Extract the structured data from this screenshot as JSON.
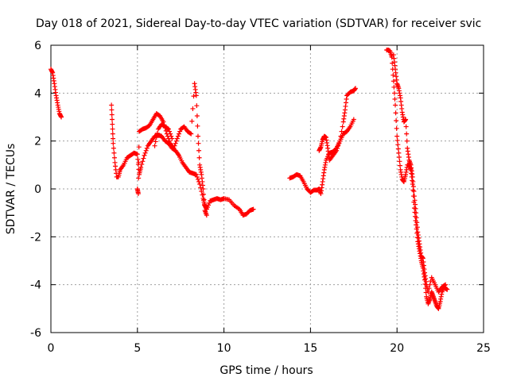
{
  "chart_data": {
    "type": "scatter",
    "title": "Day 018 of 2021, Sidereal Day-to-day VTEC variation (SDTVAR) for receiver svic",
    "xlabel": "GPS time / hours",
    "ylabel": "SDTVAR / TECUs",
    "xlim": [
      0,
      25
    ],
    "ylim": [
      -6,
      6
    ],
    "xticks": [
      0,
      5,
      10,
      15,
      20,
      25
    ],
    "yticks": [
      -6,
      -4,
      -2,
      0,
      2,
      4,
      6
    ],
    "grid": true,
    "marker": "+",
    "color": "#ff0000",
    "segments": [
      {
        "name": "seg1",
        "points": [
          [
            0.0,
            5.0
          ],
          [
            0.1,
            4.85
          ],
          [
            0.2,
            4.4
          ],
          [
            0.3,
            3.9
          ],
          [
            0.4,
            3.5
          ],
          [
            0.5,
            3.15
          ],
          [
            0.6,
            3.0
          ]
        ]
      },
      {
        "name": "seg2",
        "points": [
          [
            3.5,
            3.5
          ],
          [
            3.55,
            2.7
          ],
          [
            3.6,
            1.9
          ],
          [
            3.7,
            1.1
          ],
          [
            3.8,
            0.5
          ],
          [
            3.9,
            0.5
          ],
          [
            4.0,
            0.8
          ],
          [
            4.2,
            1.0
          ],
          [
            4.4,
            1.3
          ],
          [
            4.6,
            1.4
          ],
          [
            4.8,
            1.5
          ],
          [
            5.0,
            1.45
          ],
          [
            5.1,
            0.6
          ],
          [
            5.2,
            0.9
          ],
          [
            5.4,
            1.4
          ],
          [
            5.6,
            1.8
          ],
          [
            5.8,
            2.0
          ],
          [
            6.0,
            2.2
          ],
          [
            6.2,
            2.25
          ],
          [
            6.4,
            2.2
          ],
          [
            6.6,
            2.0
          ],
          [
            6.8,
            1.9
          ],
          [
            7.0,
            1.7
          ],
          [
            7.2,
            1.6
          ],
          [
            7.4,
            1.4
          ],
          [
            7.6,
            1.1
          ],
          [
            7.8,
            0.9
          ],
          [
            8.0,
            0.7
          ],
          [
            8.2,
            0.65
          ],
          [
            8.4,
            0.6
          ],
          [
            8.6,
            0.2
          ],
          [
            8.8,
            -0.4
          ],
          [
            8.9,
            -0.7
          ],
          [
            9.0,
            -0.85
          ],
          [
            9.2,
            -0.5
          ],
          [
            9.4,
            -0.45
          ],
          [
            9.6,
            -0.4
          ],
          [
            9.8,
            -0.45
          ],
          [
            10.0,
            -0.4
          ],
          [
            10.3,
            -0.45
          ],
          [
            10.6,
            -0.7
          ],
          [
            10.9,
            -0.85
          ],
          [
            11.1,
            -1.1
          ],
          [
            11.3,
            -1.05
          ],
          [
            11.5,
            -0.9
          ],
          [
            11.7,
            -0.85
          ]
        ]
      },
      {
        "name": "seg3",
        "points": [
          [
            5.0,
            0.0
          ],
          [
            5.05,
            -0.2
          ],
          [
            5.1,
            2.4
          ],
          [
            5.3,
            2.5
          ],
          [
            5.5,
            2.55
          ],
          [
            5.7,
            2.65
          ],
          [
            5.9,
            2.9
          ],
          [
            6.1,
            3.15
          ],
          [
            6.3,
            3.05
          ],
          [
            6.5,
            2.8
          ],
          [
            6.7,
            2.3
          ],
          [
            6.9,
            1.9
          ],
          [
            7.1,
            1.7
          ],
          [
            7.3,
            2.1
          ],
          [
            7.5,
            2.5
          ],
          [
            7.7,
            2.6
          ],
          [
            7.9,
            2.4
          ],
          [
            8.1,
            2.3
          ],
          [
            8.3,
            4.4
          ],
          [
            8.4,
            3.9
          ],
          [
            8.5,
            2.2
          ],
          [
            8.6,
            1.0
          ],
          [
            8.7,
            0.6
          ],
          [
            8.8,
            0.0
          ],
          [
            8.9,
            -0.9
          ],
          [
            9.0,
            -1.1
          ]
        ]
      },
      {
        "name": "seg4",
        "points": [
          [
            6.0,
            1.8
          ],
          [
            6.2,
            2.5
          ],
          [
            6.4,
            2.7
          ],
          [
            6.6,
            2.6
          ],
          [
            6.8,
            2.5
          ],
          [
            7.0,
            2.1
          ]
        ]
      },
      {
        "name": "seg5",
        "points": [
          [
            13.8,
            0.45
          ],
          [
            14.0,
            0.5
          ],
          [
            14.2,
            0.6
          ],
          [
            14.4,
            0.55
          ],
          [
            14.6,
            0.3
          ],
          [
            14.8,
            0.0
          ],
          [
            15.0,
            -0.15
          ],
          [
            15.2,
            -0.05
          ],
          [
            15.4,
            -0.05
          ],
          [
            15.5,
            0.0
          ],
          [
            15.6,
            -0.2
          ],
          [
            15.7,
            0.3
          ],
          [
            15.8,
            0.8
          ],
          [
            15.9,
            1.2
          ],
          [
            16.1,
            1.5
          ],
          [
            16.3,
            1.55
          ],
          [
            16.5,
            1.7
          ],
          [
            16.7,
            2.0
          ],
          [
            16.9,
            2.3
          ],
          [
            17.1,
            2.4
          ],
          [
            17.3,
            2.6
          ],
          [
            17.5,
            2.9
          ]
        ]
      },
      {
        "name": "seg6",
        "points": [
          [
            15.5,
            1.6
          ],
          [
            15.6,
            1.75
          ],
          [
            15.7,
            2.05
          ],
          [
            15.8,
            2.2
          ],
          [
            15.9,
            2.15
          ],
          [
            16.0,
            1.7
          ],
          [
            16.1,
            1.2
          ],
          [
            16.3,
            1.4
          ],
          [
            16.5,
            1.6
          ],
          [
            16.7,
            2.0
          ],
          [
            16.9,
            2.8
          ],
          [
            17.0,
            3.3
          ],
          [
            17.1,
            3.9
          ],
          [
            17.3,
            4.05
          ],
          [
            17.5,
            4.1
          ],
          [
            17.6,
            4.2
          ]
        ]
      },
      {
        "name": "seg7",
        "points": [
          [
            19.4,
            5.8
          ],
          [
            19.5,
            5.8
          ],
          [
            19.6,
            5.75
          ],
          [
            19.7,
            5.5
          ],
          [
            19.8,
            4.5
          ],
          [
            19.9,
            3.5
          ],
          [
            20.0,
            2.2
          ],
          [
            20.1,
            1.5
          ],
          [
            20.2,
            0.8
          ],
          [
            20.3,
            0.4
          ],
          [
            20.4,
            0.3
          ],
          [
            20.5,
            0.6
          ],
          [
            20.6,
            1.0
          ],
          [
            20.7,
            1.0
          ],
          [
            20.8,
            0.8
          ],
          [
            20.9,
            0.2
          ],
          [
            21.0,
            -0.8
          ],
          [
            21.1,
            -1.5
          ],
          [
            21.2,
            -2.2
          ],
          [
            21.3,
            -2.6
          ],
          [
            21.4,
            -3.0
          ],
          [
            21.5,
            -3.3
          ],
          [
            21.6,
            -3.8
          ],
          [
            21.7,
            -4.5
          ],
          [
            21.8,
            -4.8
          ],
          [
            21.9,
            -4.6
          ],
          [
            22.0,
            -4.3
          ],
          [
            22.1,
            -4.5
          ],
          [
            22.2,
            -4.7
          ],
          [
            22.3,
            -4.9
          ],
          [
            22.4,
            -5.0
          ],
          [
            22.5,
            -4.7
          ],
          [
            22.6,
            -4.3
          ],
          [
            22.7,
            -4.1
          ],
          [
            22.8,
            -4.15
          ],
          [
            22.9,
            -4.2
          ]
        ]
      },
      {
        "name": "seg8",
        "points": [
          [
            19.8,
            5.6
          ],
          [
            19.9,
            5.0
          ],
          [
            20.0,
            4.4
          ],
          [
            20.1,
            4.2
          ],
          [
            20.2,
            3.8
          ],
          [
            20.3,
            3.2
          ],
          [
            20.4,
            2.8
          ],
          [
            20.5,
            2.9
          ],
          [
            20.6,
            1.7
          ],
          [
            20.7,
            1.2
          ],
          [
            20.8,
            1.0
          ],
          [
            20.9,
            0.5
          ],
          [
            21.0,
            -0.3
          ],
          [
            21.1,
            -1.0
          ],
          [
            21.2,
            -1.8
          ],
          [
            21.3,
            -2.3
          ],
          [
            21.4,
            -2.8
          ],
          [
            21.5,
            -2.9
          ],
          [
            21.6,
            -3.5
          ],
          [
            21.7,
            -4.0
          ],
          [
            21.8,
            -4.3
          ],
          [
            22.0,
            -3.7
          ],
          [
            22.2,
            -4.0
          ],
          [
            22.4,
            -4.3
          ],
          [
            22.6,
            -4.1
          ],
          [
            22.8,
            -4.0
          ]
        ]
      }
    ]
  }
}
